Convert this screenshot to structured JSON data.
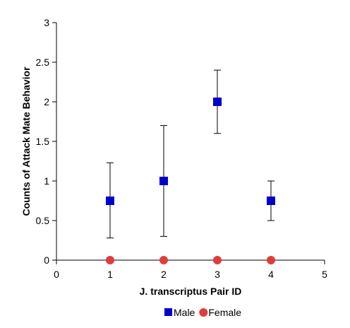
{
  "chart_data": {
    "type": "scatter",
    "xlabel": "J. transcriptus Pair ID",
    "ylabel": "Counts of Attack Mate Behavior",
    "xlim": [
      0,
      5
    ],
    "ylim": [
      0,
      3
    ],
    "x_ticks": [
      "0",
      "1",
      "2",
      "3",
      "4",
      "5"
    ],
    "y_ticks": [
      "0",
      "0.5",
      "1",
      "1.5",
      "2",
      "2.5",
      "3"
    ],
    "legend_placement": "bottom",
    "grid": false,
    "series": [
      {
        "name": "Male",
        "marker": "square",
        "color": "#0000CC",
        "x": [
          1,
          2,
          3,
          4
        ],
        "y": [
          0.75,
          1,
          2,
          0.75
        ],
        "error_low": [
          0.28,
          0.3,
          1.6,
          0.5
        ],
        "error_high": [
          1.23,
          1.7,
          2.4,
          1.0
        ]
      },
      {
        "name": "Female",
        "marker": "circle",
        "color": "#E03C3C",
        "x": [
          1,
          2,
          3,
          4
        ],
        "y": [
          0,
          0,
          0,
          0
        ]
      }
    ]
  }
}
